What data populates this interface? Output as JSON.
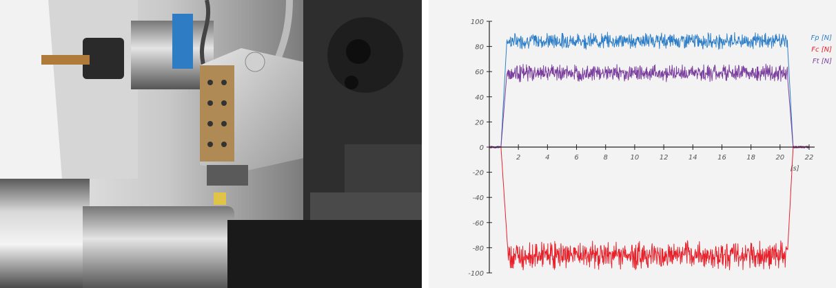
{
  "photo": {
    "description_name": "lathe-turret-with-drill-and-turning-tool"
  },
  "chart_data": {
    "type": "line",
    "title": "",
    "xlabel": "[s]",
    "ylabel": "",
    "xlim": [
      0,
      22
    ],
    "ylim": [
      -100,
      100
    ],
    "x_ticks": [
      2,
      4,
      6,
      8,
      10,
      12,
      14,
      16,
      18,
      20,
      22
    ],
    "y_ticks": [
      100,
      80,
      60,
      40,
      20,
      0,
      -20,
      -40,
      -60,
      -80,
      -100
    ],
    "grid": false,
    "legend_position": "top-right",
    "series": [
      {
        "name": "Fp [N]",
        "color": "#2f7fc8",
        "baseline": 0,
        "rise_start": 0.8,
        "plateau_start": 1.2,
        "plateau_end": 20.5,
        "fall_end": 20.9,
        "plateau_mean": 84,
        "noise_band": [
          77,
          92
        ]
      },
      {
        "name": "Fc [N]",
        "color": "#e8202a",
        "baseline": 0,
        "rise_start": 0.8,
        "plateau_start": 1.3,
        "plateau_end": 20.5,
        "fall_end": 20.9,
        "plateau_mean": -87,
        "noise_band": [
          -99,
          -73
        ]
      },
      {
        "name": "Ft [N]",
        "color": "#7b3f9e",
        "baseline": 0,
        "rise_start": 0.8,
        "plateau_start": 1.2,
        "plateau_end": 20.5,
        "fall_end": 20.9,
        "plateau_mean": 58,
        "noise_band": [
          51,
          67
        ]
      }
    ]
  }
}
